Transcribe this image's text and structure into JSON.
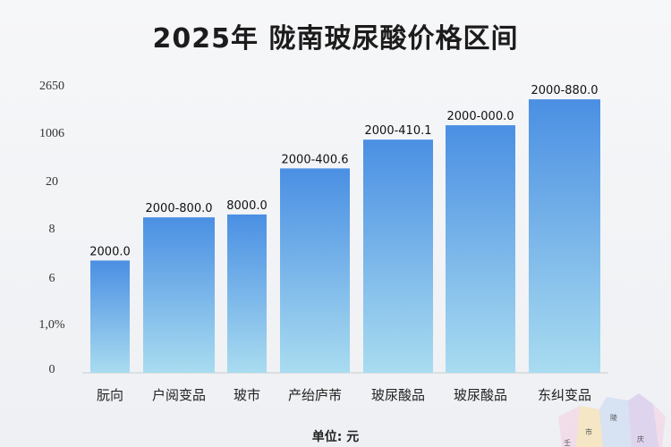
{
  "chart_data": {
    "type": "bar",
    "title": "2025年 陇南玻尿酸价格区间",
    "unit_label": "单位: 元",
    "y_tick_labels": [
      "0",
      "1,0%",
      "6",
      "8",
      "20",
      "1006",
      "2650"
    ],
    "categories": [
      "朊向",
      "户阅变品",
      "玻市",
      "产绐庐芾",
      "玻尿酸品",
      "玻尿酸品",
      "东纠变品"
    ],
    "data_labels": [
      "2000.0",
      "2000-800.0",
      "8000.0",
      "2000-400.6",
      "2000-410.1",
      "2000-000.0",
      "2000-880.0"
    ],
    "values": [
      0.39,
      0.54,
      0.55,
      0.71,
      0.81,
      0.86,
      0.95
    ],
    "value_scale": "fraction of y-axis height (axis labels unreadable)",
    "bar_color_top": "#4a8fe3",
    "bar_color_bottom": "#a9dcf0",
    "grid": false,
    "legend": "none"
  },
  "background_map_text": [
    "市",
    "陵",
    "庆",
    "壬"
  ]
}
